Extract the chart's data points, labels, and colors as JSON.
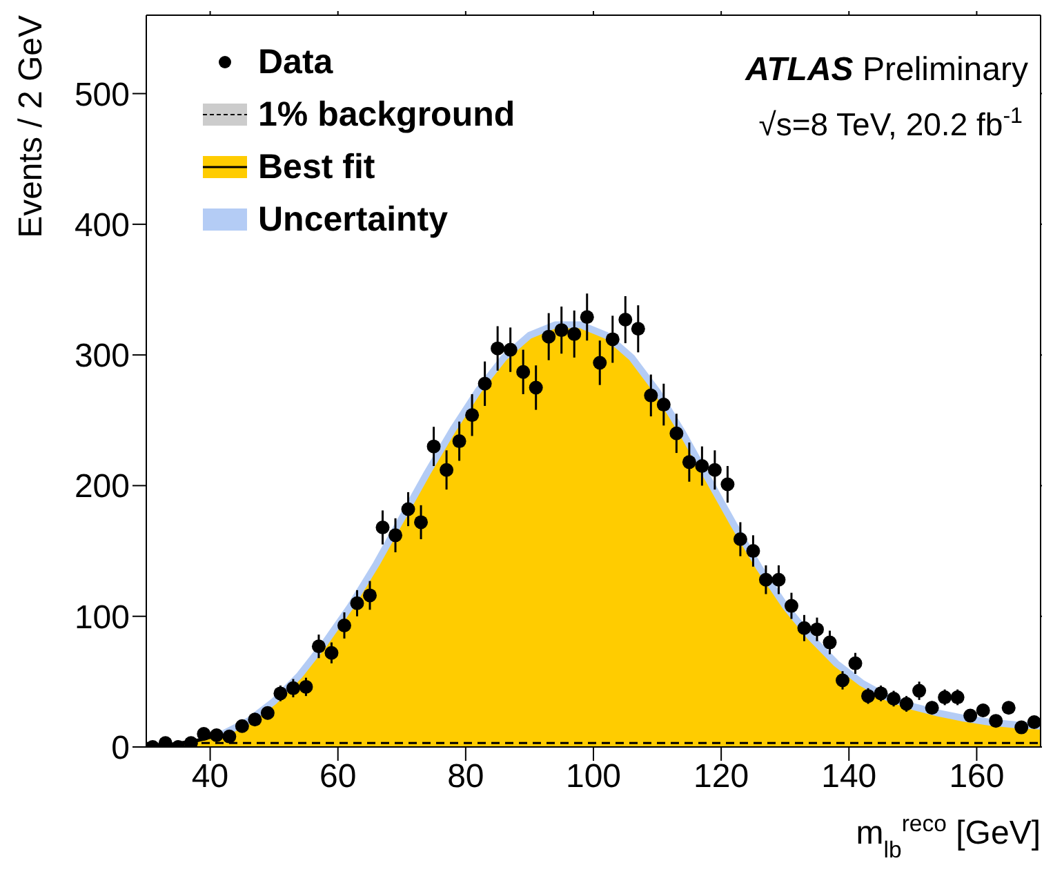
{
  "chart_data": {
    "type": "scatter",
    "xlabel": "m$_{lb}$$^{reco}$ [GeV]",
    "ylabel": "Events / 2 GeV",
    "annotations": [
      "ATLAS Preliminary",
      "√s=8 TeV, 20.2 fb$^{-1}$"
    ],
    "xlim": [
      30,
      170
    ],
    "xticks": [
      40,
      60,
      80,
      100,
      120,
      140,
      160
    ],
    "ylim": [
      0,
      560
    ],
    "yticks": [
      0,
      100,
      200,
      300,
      400,
      500
    ],
    "legend": "top left",
    "series": [
      {
        "name": "Data",
        "marker": "circle",
        "color": "#000000",
        "x": [
          31,
          33,
          35,
          37,
          39,
          41,
          43,
          45,
          47,
          49,
          51,
          53,
          55,
          57,
          59,
          61,
          63,
          65,
          67,
          69,
          71,
          73,
          75,
          77,
          79,
          81,
          83,
          85,
          87,
          89,
          91,
          93,
          95,
          97,
          99,
          101,
          103,
          105,
          107,
          109,
          111,
          113,
          115,
          117,
          119,
          121,
          123,
          125,
          127,
          129,
          131,
          133,
          135,
          137,
          139,
          141,
          143,
          145,
          147,
          149,
          151,
          153,
          155,
          157,
          159,
          161,
          163,
          165,
          167,
          169
        ],
        "values": [
          0,
          3,
          0,
          3,
          10,
          9,
          8,
          16,
          21,
          26,
          41,
          45,
          46,
          77,
          72,
          93,
          110,
          116,
          168,
          162,
          182,
          172,
          230,
          212,
          234,
          254,
          278,
          305,
          304,
          287,
          275,
          314,
          319,
          316,
          329,
          294,
          312,
          327,
          320,
          269,
          262,
          240,
          218,
          215,
          212,
          201,
          159,
          150,
          128,
          128,
          108,
          91,
          90,
          80,
          51,
          64,
          39,
          41,
          37,
          33,
          43,
          30,
          38,
          38,
          24,
          28,
          20,
          30,
          15,
          19
        ],
        "errors": [
          null,
          null,
          null,
          null,
          null,
          null,
          null,
          null,
          5,
          5,
          6,
          7,
          7,
          9,
          8,
          10,
          10,
          11,
          13,
          13,
          13,
          13,
          15,
          15,
          15,
          16,
          17,
          17,
          17,
          17,
          17,
          18,
          18,
          18,
          18,
          17,
          18,
          18,
          18,
          16,
          16,
          15,
          15,
          15,
          15,
          14,
          13,
          12,
          11,
          11,
          10,
          10,
          9,
          9,
          7,
          8,
          6,
          6,
          6,
          6,
          7,
          5,
          6,
          6,
          5,
          5,
          4,
          5,
          4,
          4
        ]
      },
      {
        "name": "1% background",
        "type": "line",
        "line_style": "dashed",
        "color": "#000000",
        "x": [
          30,
          170
        ],
        "values": [
          3,
          3
        ]
      },
      {
        "name": "Best fit",
        "type": "area",
        "color": "#ffcc00",
        "x": [
          30,
          34,
          38,
          42,
          46,
          50,
          54,
          58,
          62,
          66,
          70,
          74,
          78,
          82,
          86,
          90,
          94,
          98,
          102,
          106,
          110,
          114,
          118,
          122,
          126,
          130,
          134,
          138,
          142,
          146,
          150,
          154,
          158,
          162,
          166,
          170
        ],
        "values": [
          1,
          2,
          5,
          10,
          20,
          35,
          55,
          80,
          108,
          140,
          175,
          210,
          243,
          273,
          298,
          315,
          323,
          323,
          315,
          298,
          272,
          240,
          205,
          170,
          137,
          108,
          84,
          64,
          49,
          38,
          31,
          26,
          22,
          19,
          17,
          16
        ]
      },
      {
        "name": "Uncertainty",
        "type": "line",
        "line_style": "solid",
        "color": "#b4ccf5",
        "x": [
          42,
          46,
          50,
          54,
          58,
          62,
          66,
          70,
          74,
          78,
          82,
          86,
          90,
          94,
          98,
          102,
          106,
          110,
          114,
          118,
          122,
          126,
          130,
          134,
          138,
          142,
          146,
          150,
          154,
          158,
          162,
          166,
          170
        ],
        "values": [
          10,
          20,
          35,
          55,
          80,
          108,
          140,
          175,
          210,
          243,
          273,
          298,
          315,
          323,
          323,
          315,
          298,
          272,
          240,
          205,
          170,
          137,
          108,
          84,
          64,
          49,
          38,
          31,
          26,
          22,
          19,
          17,
          16
        ]
      }
    ]
  }
}
